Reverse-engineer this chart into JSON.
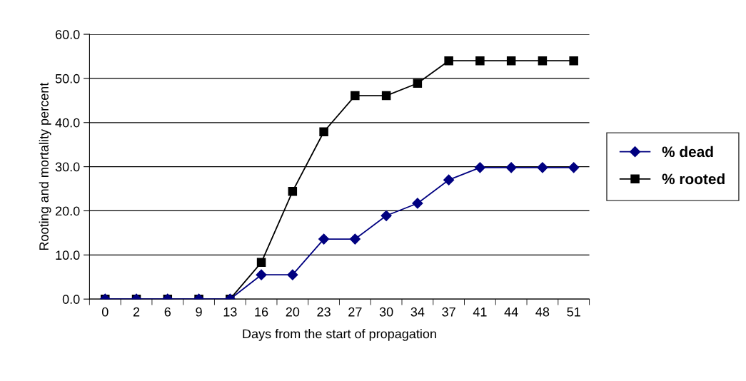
{
  "chart_data": {
    "type": "line",
    "xlabel": "Days from the start of propagation",
    "ylabel": "Rooting and mortality percent",
    "categories": [
      "0",
      "2",
      "6",
      "9",
      "13",
      "16",
      "20",
      "23",
      "27",
      "30",
      "34",
      "37",
      "41",
      "44",
      "48",
      "51"
    ],
    "series": [
      {
        "name": "% dead",
        "color": "#000080",
        "marker": "diamond",
        "values": [
          0,
          0,
          0,
          0,
          0,
          5.5,
          5.5,
          13.6,
          13.6,
          18.9,
          21.7,
          27.0,
          29.8,
          29.8,
          29.8,
          29.8
        ]
      },
      {
        "name": "% rooted",
        "color": "#000000",
        "marker": "square",
        "values": [
          0,
          0,
          0,
          0,
          0,
          8.3,
          24.4,
          37.9,
          46.1,
          46.1,
          48.9,
          54.0,
          54.0,
          54.0,
          54.0,
          54.0
        ]
      }
    ],
    "ylim": [
      0,
      60
    ],
    "yticks": [
      {
        "value": 0,
        "label": "0.0"
      },
      {
        "value": 10,
        "label": "10.0"
      },
      {
        "value": 20,
        "label": "20.0"
      },
      {
        "value": 30,
        "label": "30.0"
      },
      {
        "value": 40,
        "label": "40.0"
      },
      {
        "value": 50,
        "label": "50.0"
      },
      {
        "value": 60,
        "label": "60.0"
      }
    ],
    "grid": "y",
    "legend": "right",
    "line_style": "solid"
  }
}
